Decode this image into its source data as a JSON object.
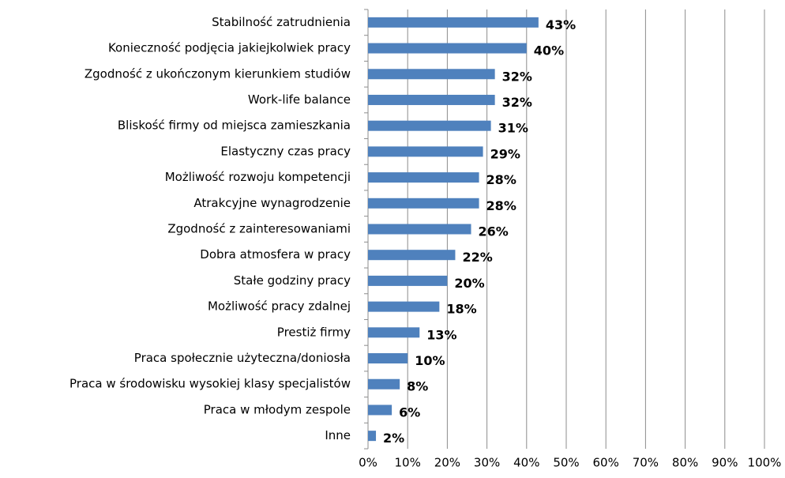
{
  "chart_data": {
    "type": "barh",
    "categories": [
      "Stabilność zatrudnienia",
      "Konieczność podjęcia jakiejkolwiek pracy",
      "Zgodność z ukończonym kierunkiem studiów",
      "Work-life balance",
      "Bliskość firmy od miejsca zamieszkania",
      "Elastyczny czas pracy",
      "Możliwość rozwoju kompetencji",
      "Atrakcyjne wynagrodzenie",
      "Zgodność z zainteresowaniami",
      "Dobra atmosfera w pracy",
      "Stałe godziny pracy",
      "Możliwość pracy zdalnej",
      "Prestiż firmy",
      "Praca społecznie użyteczna/doniosła",
      "Praca w środowisku wysokiej klasy specjalistów",
      "Praca w młodym zespole",
      "Inne"
    ],
    "values": [
      43,
      40,
      32,
      32,
      31,
      29,
      28,
      28,
      26,
      22,
      20,
      18,
      13,
      10,
      8,
      6,
      2
    ],
    "value_labels": [
      "43%",
      "40%",
      "32%",
      "32%",
      "31%",
      "29%",
      "28%",
      "28%",
      "26%",
      "22%",
      "20%",
      "18%",
      "13%",
      "10%",
      "8%",
      "6%",
      "2%"
    ],
    "color": "#4f81bd",
    "xlim": [
      0,
      100
    ],
    "xticks": [
      {
        "value": 0,
        "label": "0%"
      },
      {
        "value": 10,
        "label": "10%"
      },
      {
        "value": 20,
        "label": "20%"
      },
      {
        "value": 30,
        "label": "30%"
      },
      {
        "value": 40,
        "label": "40%"
      },
      {
        "value": 50,
        "label": "50%"
      },
      {
        "value": 60,
        "label": "60%"
      },
      {
        "value": 70,
        "label": "70%"
      },
      {
        "value": 80,
        "label": "80%"
      },
      {
        "value": 90,
        "label": "90%"
      },
      {
        "value": 100,
        "label": "100%"
      }
    ],
    "grid": true
  }
}
